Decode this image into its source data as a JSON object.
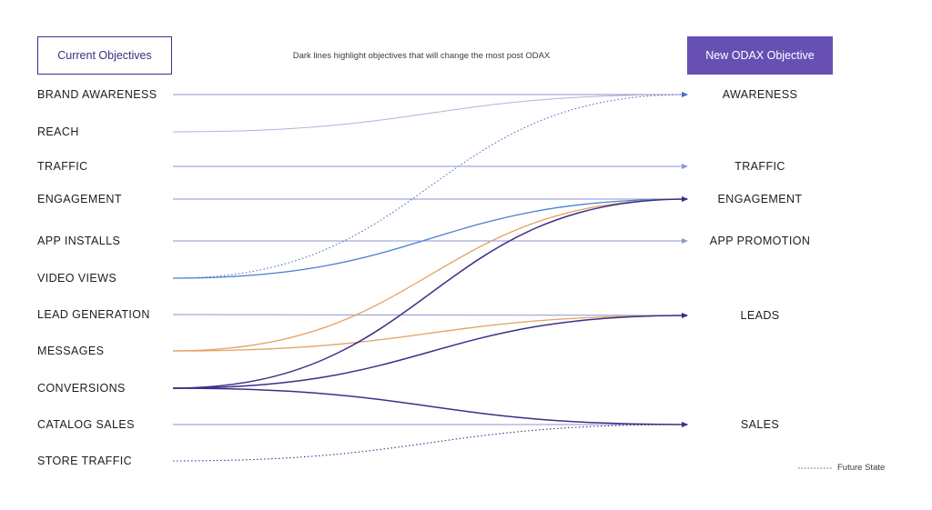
{
  "header": {
    "current_label": "Current Objectives",
    "new_label": "New ODAX Objective",
    "subtitle": "Dark lines highlight objectives that will change the most post ODAX"
  },
  "current_objectives": [
    {
      "id": "brand_awareness",
      "label": "BRAND AWARENESS"
    },
    {
      "id": "reach",
      "label": "REACH"
    },
    {
      "id": "traffic",
      "label": "TRAFFIC"
    },
    {
      "id": "engagement",
      "label": "ENGAGEMENT"
    },
    {
      "id": "app_installs",
      "label": "APP INSTALLS"
    },
    {
      "id": "video_views",
      "label": "VIDEO VIEWS"
    },
    {
      "id": "lead_generation",
      "label": "LEAD GENERATION"
    },
    {
      "id": "messages",
      "label": "MESSAGES"
    },
    {
      "id": "conversions",
      "label": "CONVERSIONS"
    },
    {
      "id": "catalog_sales",
      "label": "CATALOG SALES"
    },
    {
      "id": "store_traffic",
      "label": "STORE TRAFFIC"
    }
  ],
  "new_objectives": [
    {
      "id": "awareness",
      "label": "AWARENESS"
    },
    {
      "id": "traffic",
      "label": "TRAFFIC"
    },
    {
      "id": "engagement",
      "label": "ENGAGEMENT"
    },
    {
      "id": "app_promotion",
      "label": "APP PROMOTION"
    },
    {
      "id": "leads",
      "label": "LEADS"
    },
    {
      "id": "sales",
      "label": "SALES"
    }
  ],
  "mappings": [
    {
      "from": "brand_awareness",
      "to": "awareness",
      "style": "light",
      "color": "#8c96cf"
    },
    {
      "from": "reach",
      "to": "awareness",
      "style": "light",
      "color": "#b9b0d8"
    },
    {
      "from": "traffic",
      "to": "traffic",
      "style": "light",
      "color": "#8c96cf"
    },
    {
      "from": "engagement",
      "to": "engagement",
      "style": "light",
      "color": "#8c96cf"
    },
    {
      "from": "app_installs",
      "to": "app_promotion",
      "style": "light",
      "color": "#8c96cf"
    },
    {
      "from": "video_views",
      "to": "awareness",
      "style": "future",
      "color": "#4a6fc2"
    },
    {
      "from": "video_views",
      "to": "engagement",
      "style": "solid",
      "color": "#4a7fd0"
    },
    {
      "from": "lead_generation",
      "to": "leads",
      "style": "light",
      "color": "#8c96cf"
    },
    {
      "from": "messages",
      "to": "engagement",
      "style": "solid",
      "color": "#e2a062"
    },
    {
      "from": "messages",
      "to": "leads",
      "style": "solid",
      "color": "#e2a062"
    },
    {
      "from": "conversions",
      "to": "engagement",
      "style": "dark",
      "color": "#3d2f88"
    },
    {
      "from": "conversions",
      "to": "leads",
      "style": "dark",
      "color": "#3d2f88"
    },
    {
      "from": "conversions",
      "to": "sales",
      "style": "dark",
      "color": "#3d2f88"
    },
    {
      "from": "catalog_sales",
      "to": "sales",
      "style": "light",
      "color": "#8c96cf"
    },
    {
      "from": "store_traffic",
      "to": "sales",
      "style": "future",
      "color": "#3d2f88"
    }
  ],
  "legend": {
    "future_label": "Future State"
  }
}
